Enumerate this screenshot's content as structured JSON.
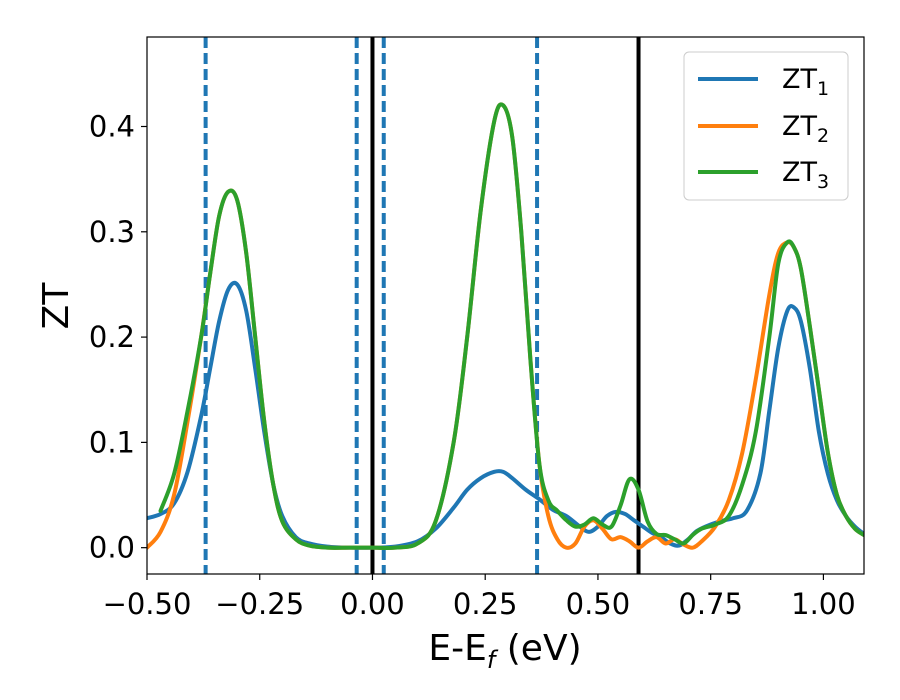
{
  "chart_data": {
    "type": "line",
    "title": "",
    "xlabel": "E-E",
    "xlabel_sub": "f",
    "xlabel_unit": " (eV)",
    "ylabel": "ZT",
    "xlim": [
      -0.5,
      1.09
    ],
    "ylim": [
      -0.025,
      0.485
    ],
    "grid": false,
    "legend": {
      "placement": "top-right",
      "entries": [
        {
          "base": "ZT",
          "sub": "1",
          "color": "#1f77b4"
        },
        {
          "base": "ZT",
          "sub": "2",
          "color": "#ff7f0e"
        },
        {
          "base": "ZT",
          "sub": "3",
          "color": "#2ca02c"
        }
      ]
    },
    "x_ticks": [
      {
        "value": -0.5,
        "label": "−0.50"
      },
      {
        "value": -0.25,
        "label": "−0.25"
      },
      {
        "value": 0.0,
        "label": "0.00"
      },
      {
        "value": 0.25,
        "label": "0.25"
      },
      {
        "value": 0.5,
        "label": "0.50"
      },
      {
        "value": 0.75,
        "label": "0.75"
      },
      {
        "value": 1.0,
        "label": "1.00"
      }
    ],
    "y_ticks": [
      {
        "value": 0.0,
        "label": "0.0"
      },
      {
        "value": 0.1,
        "label": "0.1"
      },
      {
        "value": 0.2,
        "label": "0.2"
      },
      {
        "value": 0.3,
        "label": "0.3"
      },
      {
        "value": 0.4,
        "label": "0.4"
      }
    ],
    "vertical_lines": [
      {
        "x": -0.37,
        "style": "dashed",
        "color": "#1f77b4"
      },
      {
        "x": -0.035,
        "style": "dashed",
        "color": "#1f77b4"
      },
      {
        "x": 0.025,
        "style": "dashed",
        "color": "#1f77b4"
      },
      {
        "x": 0.365,
        "style": "dashed",
        "color": "#1f77b4"
      },
      {
        "x": 0.0,
        "style": "solid",
        "color": "#000000"
      },
      {
        "x": 0.59,
        "style": "solid",
        "color": "#000000"
      }
    ],
    "series": [
      {
        "name": "ZT1",
        "color": "#1f77b4",
        "x": [
          -0.5,
          -0.47,
          -0.44,
          -0.41,
          -0.38,
          -0.36,
          -0.34,
          -0.32,
          -0.3,
          -0.28,
          -0.26,
          -0.24,
          -0.22,
          -0.2,
          -0.17,
          -0.14,
          -0.1,
          -0.05,
          0.0,
          0.05,
          0.1,
          0.14,
          0.18,
          0.21,
          0.24,
          0.27,
          0.29,
          0.31,
          0.34,
          0.37,
          0.4,
          0.43,
          0.46,
          0.48,
          0.5,
          0.52,
          0.54,
          0.56,
          0.58,
          0.6,
          0.62,
          0.64,
          0.66,
          0.68,
          0.7,
          0.72,
          0.75,
          0.78,
          0.8,
          0.83,
          0.86,
          0.88,
          0.9,
          0.92,
          0.935,
          0.95,
          0.97,
          0.99,
          1.01,
          1.03,
          1.05,
          1.07,
          1.09
        ],
        "y": [
          0.028,
          0.032,
          0.042,
          0.072,
          0.125,
          0.17,
          0.215,
          0.245,
          0.25,
          0.225,
          0.17,
          0.11,
          0.06,
          0.03,
          0.01,
          0.004,
          0.001,
          0.0,
          0.0,
          0.001,
          0.006,
          0.018,
          0.038,
          0.055,
          0.066,
          0.072,
          0.072,
          0.066,
          0.055,
          0.046,
          0.036,
          0.03,
          0.02,
          0.015,
          0.02,
          0.03,
          0.034,
          0.032,
          0.026,
          0.02,
          0.014,
          0.01,
          0.004,
          0.002,
          0.008,
          0.016,
          0.022,
          0.026,
          0.028,
          0.035,
          0.07,
          0.13,
          0.19,
          0.225,
          0.228,
          0.215,
          0.17,
          0.11,
          0.07,
          0.045,
          0.03,
          0.02,
          0.013
        ]
      },
      {
        "name": "ZT2",
        "color": "#ff7f0e",
        "x": [
          -0.5,
          -0.47,
          -0.44,
          -0.41,
          -0.38,
          -0.36,
          -0.34,
          -0.32,
          -0.3,
          -0.28,
          -0.26,
          -0.24,
          -0.22,
          -0.2,
          -0.17,
          -0.14,
          -0.1,
          -0.05,
          0.0,
          0.05,
          0.1,
          0.14,
          0.18,
          0.21,
          0.24,
          0.27,
          0.29,
          0.31,
          0.33,
          0.35,
          0.37,
          0.39,
          0.41,
          0.43,
          0.45,
          0.47,
          0.49,
          0.51,
          0.53,
          0.55,
          0.57,
          0.59,
          0.61,
          0.63,
          0.65,
          0.67,
          0.69,
          0.71,
          0.73,
          0.76,
          0.79,
          0.82,
          0.85,
          0.88,
          0.9,
          0.92,
          0.935,
          0.95,
          0.97,
          0.99,
          1.01,
          1.03,
          1.05,
          1.07,
          1.09
        ],
        "y": [
          0.0,
          0.015,
          0.05,
          0.12,
          0.2,
          0.26,
          0.315,
          0.338,
          0.33,
          0.28,
          0.2,
          0.12,
          0.06,
          0.025,
          0.008,
          0.002,
          0.0,
          0.0,
          0.0,
          0.0,
          0.004,
          0.025,
          0.1,
          0.2,
          0.32,
          0.405,
          0.42,
          0.39,
          0.3,
          0.18,
          0.08,
          0.03,
          0.008,
          0.0,
          0.004,
          0.02,
          0.026,
          0.018,
          0.008,
          0.01,
          0.006,
          0.0,
          0.006,
          0.01,
          0.004,
          0.008,
          0.003,
          0.0,
          0.006,
          0.02,
          0.045,
          0.09,
          0.16,
          0.24,
          0.28,
          0.29,
          0.285,
          0.265,
          0.21,
          0.15,
          0.09,
          0.05,
          0.03,
          0.018,
          0.012
        ]
      },
      {
        "name": "ZT3",
        "color": "#2ca02c",
        "x": [
          -0.47,
          -0.44,
          -0.41,
          -0.38,
          -0.36,
          -0.34,
          -0.32,
          -0.3,
          -0.28,
          -0.26,
          -0.24,
          -0.22,
          -0.2,
          -0.17,
          -0.14,
          -0.1,
          -0.05,
          0.0,
          0.05,
          0.1,
          0.14,
          0.18,
          0.21,
          0.24,
          0.27,
          0.29,
          0.31,
          0.33,
          0.35,
          0.37,
          0.39,
          0.41,
          0.43,
          0.45,
          0.47,
          0.49,
          0.51,
          0.53,
          0.55,
          0.57,
          0.59,
          0.61,
          0.63,
          0.65,
          0.67,
          0.69,
          0.71,
          0.73,
          0.76,
          0.79,
          0.82,
          0.85,
          0.88,
          0.9,
          0.92,
          0.935,
          0.95,
          0.97,
          0.99,
          1.01,
          1.03,
          1.05,
          1.07,
          1.09
        ],
        "y": [
          0.035,
          0.07,
          0.13,
          0.2,
          0.26,
          0.315,
          0.338,
          0.33,
          0.28,
          0.2,
          0.12,
          0.06,
          0.025,
          0.008,
          0.002,
          0.0,
          0.0,
          0.0,
          0.0,
          0.004,
          0.025,
          0.1,
          0.2,
          0.32,
          0.405,
          0.42,
          0.39,
          0.3,
          0.18,
          0.08,
          0.045,
          0.035,
          0.026,
          0.02,
          0.022,
          0.028,
          0.022,
          0.02,
          0.04,
          0.065,
          0.055,
          0.025,
          0.013,
          0.012,
          0.008,
          0.004,
          0.012,
          0.018,
          0.022,
          0.03,
          0.06,
          0.11,
          0.2,
          0.27,
          0.29,
          0.285,
          0.265,
          0.21,
          0.15,
          0.09,
          0.05,
          0.03,
          0.018,
          0.012
        ]
      }
    ]
  }
}
